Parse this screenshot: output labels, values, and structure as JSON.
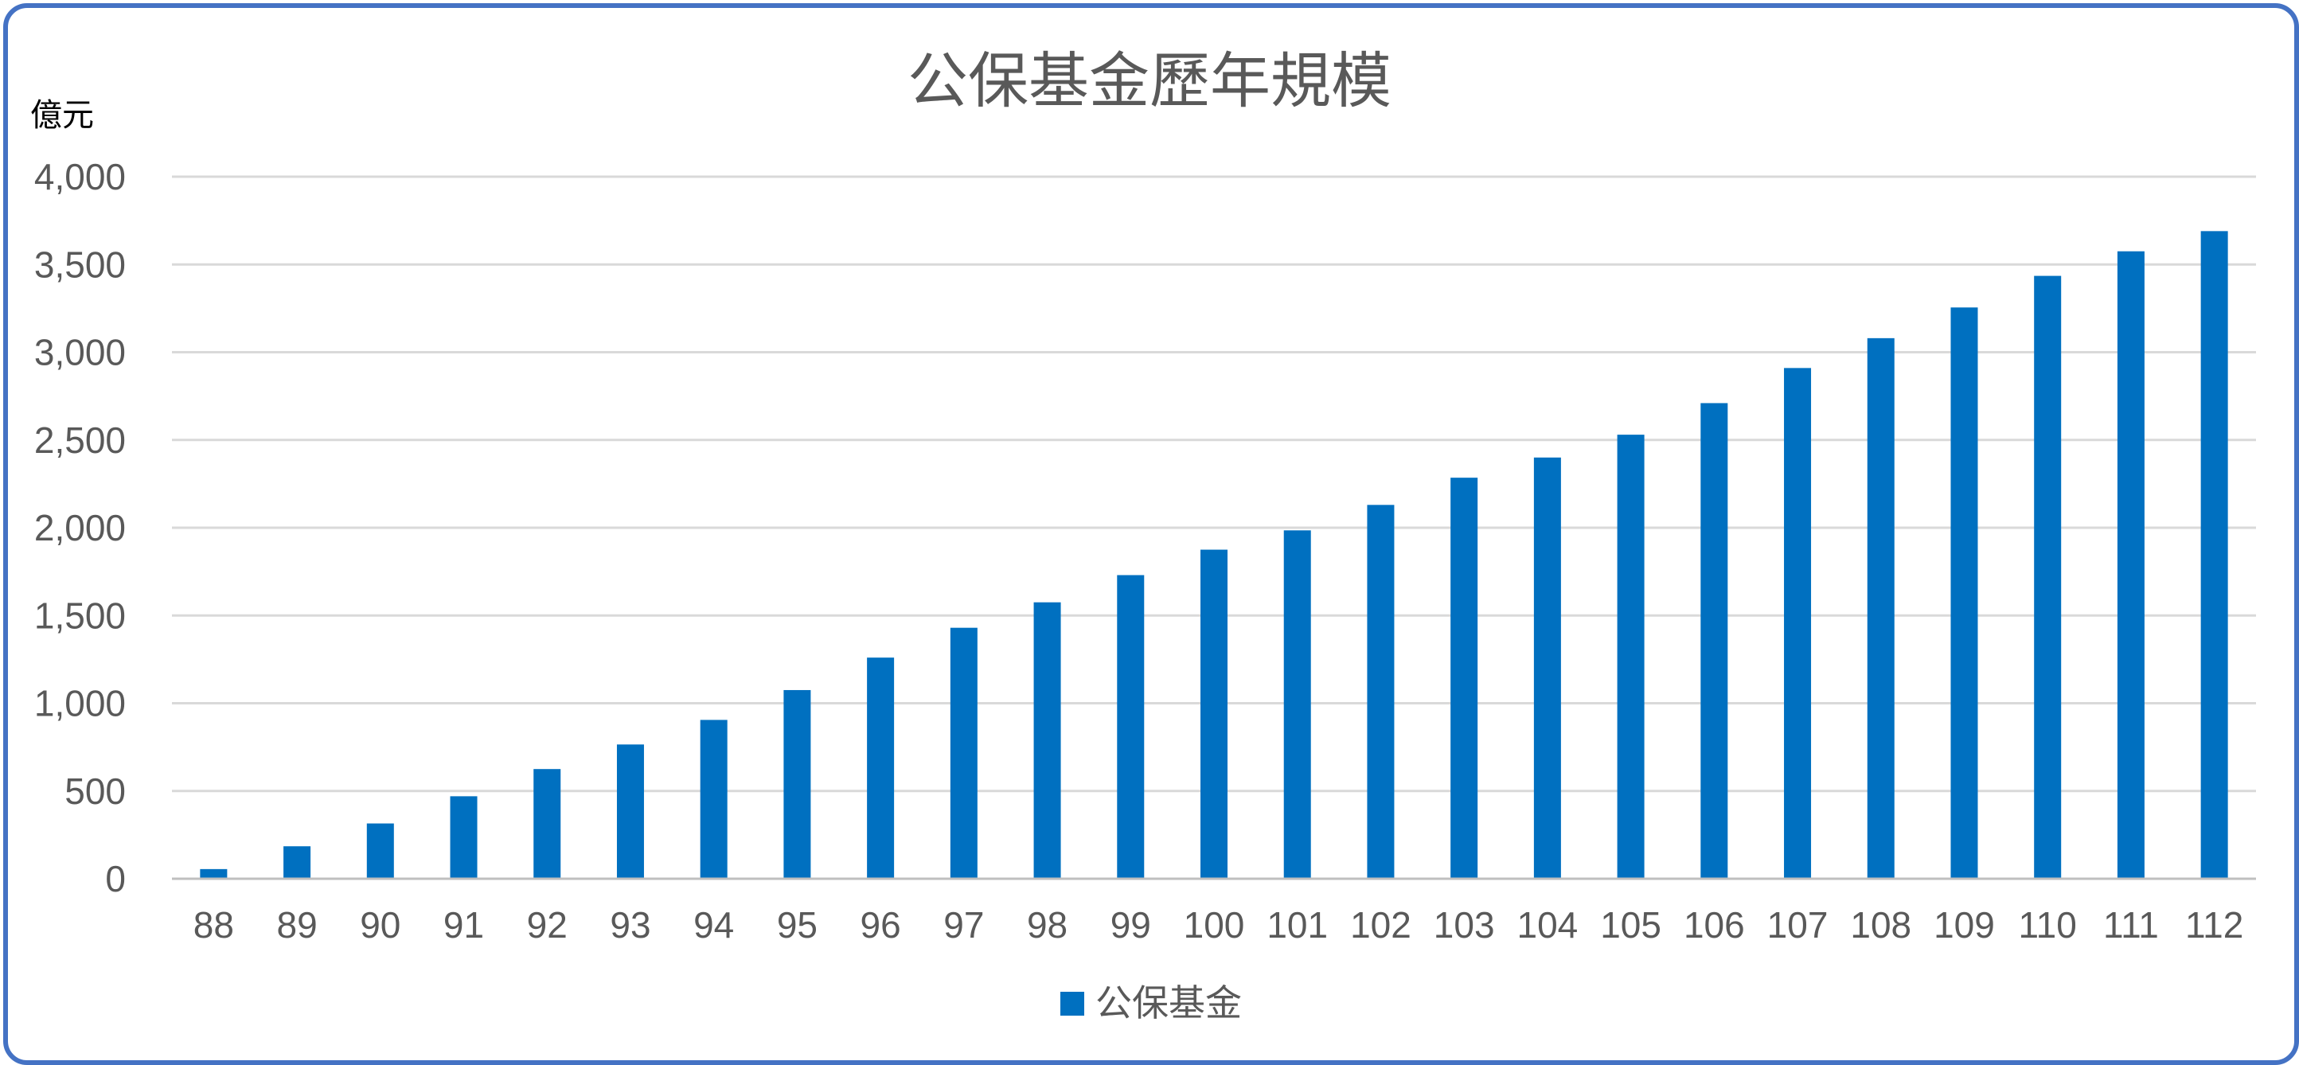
{
  "chart_data": {
    "type": "bar",
    "title": "公保基金歷年規模",
    "ylabel": "億元",
    "xlabel": "",
    "categories": [
      "88",
      "89",
      "90",
      "91",
      "92",
      "93",
      "94",
      "95",
      "96",
      "97",
      "98",
      "99",
      "100",
      "101",
      "102",
      "103",
      "104",
      "105",
      "106",
      "107",
      "108",
      "109",
      "110",
      "111",
      "112"
    ],
    "series": [
      {
        "name": "公保基金",
        "color": "#0070C0",
        "values": [
          55,
          185,
          315,
          470,
          625,
          765,
          905,
          1075,
          1260,
          1430,
          1575,
          1730,
          1875,
          1985,
          2130,
          2285,
          2400,
          2530,
          2710,
          2910,
          3080,
          3255,
          3435,
          3575,
          3690
        ]
      }
    ],
    "ylim": [
      0,
      4000
    ],
    "yticks": [
      "0",
      "500",
      "1,000",
      "1,500",
      "2,000",
      "2,500",
      "3,000",
      "3,500",
      "4,000"
    ],
    "ytick_values": [
      0,
      500,
      1000,
      1500,
      2000,
      2500,
      3000,
      3500,
      4000
    ],
    "grid": true,
    "legend_position": "bottom",
    "colors": {
      "frame": "#4472C4",
      "grid": "#D9D9D9",
      "axis": "#BFBFBF",
      "text": "#595959"
    }
  }
}
